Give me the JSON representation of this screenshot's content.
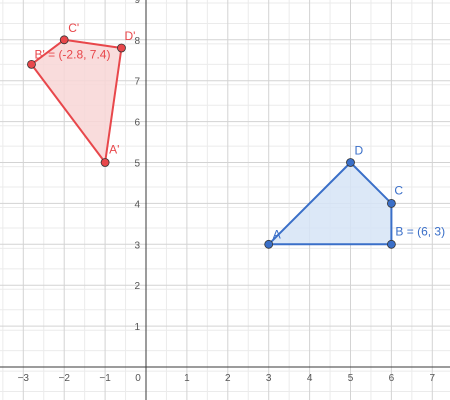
{
  "graph": {
    "x_range": [
      -3.5,
      7.5
    ],
    "y_range": [
      -0.6,
      9.2
    ],
    "x_ticks": [
      "−3",
      "−2",
      "−1",
      "0",
      "1",
      "2",
      "3",
      "4",
      "5",
      "6",
      "7"
    ],
    "x_tick_values": [
      -3,
      -2,
      -1,
      0,
      1,
      2,
      3,
      4,
      5,
      6,
      7
    ],
    "y_ticks": [
      "1",
      "2",
      "3",
      "4",
      "5",
      "6",
      "7",
      "8",
      "9"
    ],
    "y_tick_values": [
      1,
      2,
      3,
      4,
      5,
      6,
      7,
      8,
      9
    ],
    "colors": {
      "original": "#3a6fc8",
      "original_fill": "#d6e4f6",
      "image": "#e8474b",
      "image_fill": "#f8d6d6",
      "axis": "#3a3a3a"
    }
  },
  "polygons": [
    {
      "name": "original-quadrilateral",
      "color_key": "original",
      "points": [
        {
          "label": "A",
          "x": 3,
          "y": 3,
          "text": "A"
        },
        {
          "label": "D",
          "x": 5,
          "y": 5,
          "text": "D"
        },
        {
          "label": "C",
          "x": 6,
          "y": 4,
          "text": "C"
        },
        {
          "label": "B",
          "x": 6,
          "y": 3,
          "text": "B = (6, 3)"
        }
      ]
    },
    {
      "name": "image-quadrilateral",
      "color_key": "image",
      "points": [
        {
          "label": "A'",
          "x": -1,
          "y": 5,
          "text": "A'"
        },
        {
          "label": "B'",
          "x": -2.8,
          "y": 7.4,
          "text": "B' = (-2.8, 7.4)"
        },
        {
          "label": "C'",
          "x": -2,
          "y": 8,
          "text": "C'"
        },
        {
          "label": "D'",
          "x": -0.6,
          "y": 7.8,
          "text": "D'"
        }
      ]
    }
  ]
}
